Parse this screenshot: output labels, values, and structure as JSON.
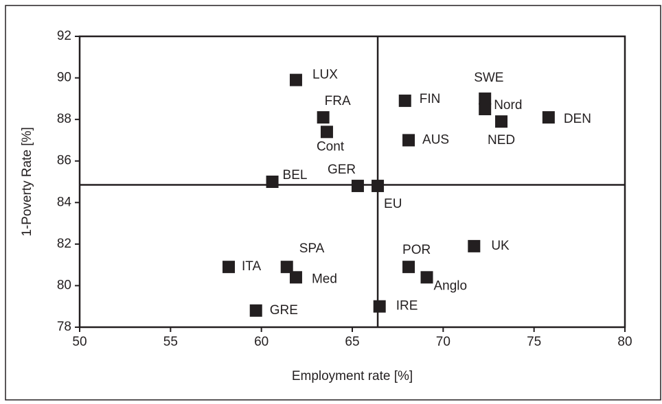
{
  "chart_data": {
    "type": "scatter",
    "xlabel": "Employment rate [%]",
    "ylabel": "1-Poverty Rate [%]",
    "labels": [
      "LUX",
      "FRA",
      "Cont",
      "BEL",
      "GER",
      "EU",
      "FIN",
      "AUS",
      "SWE",
      "Nord",
      "NED",
      "DEN",
      "ITA",
      "SPA",
      "Med",
      "GRE",
      "POR",
      "Anglo",
      "UK",
      "IRE"
    ],
    "x": [
      61.9,
      63.4,
      63.6,
      60.6,
      65.3,
      66.4,
      67.9,
      68.1,
      72.3,
      72.3,
      73.2,
      75.8,
      58.2,
      61.4,
      61.9,
      59.7,
      68.1,
      69.1,
      71.7,
      66.5
    ],
    "y": [
      89.9,
      88.1,
      87.4,
      85.0,
      84.8,
      84.8,
      88.9,
      87.0,
      89.0,
      88.5,
      87.9,
      88.1,
      80.9,
      80.9,
      80.4,
      78.8,
      80.9,
      80.4,
      81.9,
      79.0
    ],
    "color": "#231f20",
    "quadrant": {
      "x": 66.4,
      "y": 84.85
    },
    "xlim": [
      50,
      80
    ],
    "xticks": [
      50,
      55,
      60,
      65,
      70,
      75,
      80
    ],
    "ylim": [
      78,
      92
    ],
    "yticks": [
      78,
      80,
      82,
      84,
      86,
      88,
      90,
      92
    ]
  }
}
